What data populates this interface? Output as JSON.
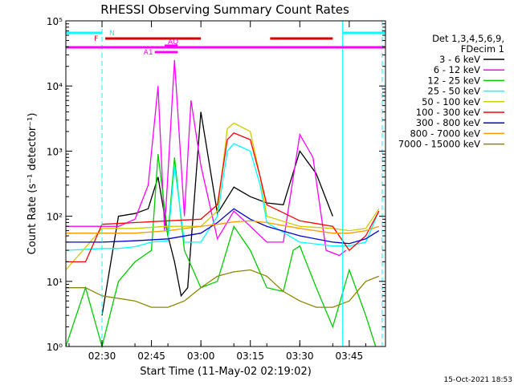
{
  "chart_data": {
    "type": "line",
    "title": "RHESSI Observing Summary Count Rates",
    "xlabel": "Start Time (11-May-02 02:19:02)",
    "ylabel": "Count Rate (s⁻¹ detector⁻¹)",
    "xlim": [
      "02:19:02",
      "03:56:00"
    ],
    "ylim": [
      1,
      100000
    ],
    "yscale": "log",
    "x_ticks": [
      "02:30",
      "02:45",
      "03:00",
      "03:15",
      "03:30",
      "03:45"
    ],
    "y_ticks": [
      {
        "value": 1,
        "label": "10⁰"
      },
      {
        "value": 10,
        "label": "10¹"
      },
      {
        "value": 100,
        "label": "10²"
      },
      {
        "value": 1000,
        "label": "10³"
      },
      {
        "value": 10000,
        "label": "10⁴"
      },
      {
        "value": 100000,
        "label": "10⁵"
      }
    ],
    "legend": {
      "placement": "right",
      "header": [
        "Det 1,3,4,5,6,9,",
        "FDecim 1"
      ]
    },
    "timestamp": "15-Oct-2021 18:53",
    "series": [
      {
        "name": "3 - 6 keV",
        "color": "#000000",
        "x": [
          "02:30",
          "02:35",
          "02:40",
          "02:44",
          "02:47",
          "02:50",
          "02:52",
          "02:54",
          "02:56",
          "03:00",
          "03:05",
          "03:10",
          "03:15",
          "03:20",
          "03:25",
          "03:30",
          "03:35",
          "03:40"
        ],
        "y": [
          3,
          100,
          110,
          130,
          400,
          50,
          20,
          6,
          8,
          4000,
          110,
          280,
          200,
          160,
          150,
          1000,
          450,
          100
        ]
      },
      {
        "name": "6 - 12 keV",
        "color": "#ff00ff",
        "x": [
          "02:19:02",
          "02:30",
          "02:35",
          "02:40",
          "02:44",
          "02:47",
          "02:49",
          "02:52",
          "02:55",
          "02:57",
          "03:00",
          "03:05",
          "03:10",
          "03:15",
          "03:20",
          "03:25",
          "03:30",
          "03:34",
          "03:38",
          "03:42",
          "03:44"
        ],
        "y": [
          70,
          70,
          70,
          90,
          300,
          10000,
          60,
          25000,
          100,
          6000,
          600,
          45,
          120,
          70,
          40,
          40,
          1800,
          800,
          30,
          25,
          30
        ]
      },
      {
        "name": "12 - 25 keV",
        "color": "#00cc00",
        "x": [
          "02:19:02",
          "02:25",
          "02:30",
          "02:35",
          "02:40",
          "02:45",
          "02:47",
          "02:50",
          "02:52",
          "02:55",
          "03:00",
          "03:05",
          "03:10",
          "03:15",
          "03:20",
          "03:25",
          "03:28",
          "03:30",
          "03:35",
          "03:40",
          "03:45",
          "03:50",
          "03:53"
        ],
        "y": [
          1,
          8,
          1,
          10,
          20,
          30,
          900,
          50,
          800,
          30,
          8,
          10,
          70,
          30,
          8,
          7,
          30,
          35,
          8,
          2,
          15,
          3,
          1
        ]
      },
      {
        "name": "25 - 50 keV",
        "color": "#00ffff",
        "x": [
          "02:19:02",
          "02:30",
          "02:35",
          "02:40",
          "02:45",
          "02:50",
          "02:52",
          "02:55",
          "03:00",
          "03:05",
          "03:08",
          "03:10",
          "03:15",
          "03:18",
          "03:20",
          "03:30",
          "03:40",
          "03:45",
          "03:50",
          "03:54"
        ],
        "y": [
          30,
          32,
          32,
          34,
          40,
          42,
          600,
          40,
          40,
          100,
          1000,
          1300,
          1000,
          300,
          80,
          40,
          35,
          35,
          40,
          120
        ]
      },
      {
        "name": "50 - 100 keV",
        "color": "#cccc00",
        "x": [
          "02:19:02",
          "02:30",
          "02:40",
          "02:50",
          "03:00",
          "03:05",
          "03:08",
          "03:10",
          "03:15",
          "03:18",
          "03:20",
          "03:30",
          "03:40",
          "03:45",
          "03:50",
          "03:54"
        ],
        "y": [
          15,
          65,
          65,
          70,
          70,
          120,
          2200,
          2700,
          2000,
          400,
          100,
          70,
          65,
          60,
          65,
          130
        ]
      },
      {
        "name": "100 - 300 keV",
        "color": "#ff0000",
        "x": [
          "02:19:02",
          "02:25",
          "02:30",
          "02:40",
          "02:50",
          "03:00",
          "03:05",
          "03:08",
          "03:10",
          "03:15",
          "03:18",
          "03:20",
          "03:30",
          "03:40",
          "03:45",
          "03:50",
          "03:54"
        ],
        "y": [
          20,
          20,
          75,
          80,
          85,
          90,
          150,
          1500,
          1900,
          1500,
          400,
          150,
          85,
          70,
          30,
          50,
          120
        ]
      },
      {
        "name": "300 - 800 keV",
        "color": "#0000cc",
        "x": [
          "02:19:02",
          "02:30",
          "02:40",
          "02:50",
          "03:00",
          "03:05",
          "03:10",
          "03:15",
          "03:20",
          "03:30",
          "03:40",
          "03:45",
          "03:50",
          "03:54"
        ],
        "y": [
          40,
          40,
          42,
          45,
          55,
          80,
          130,
          90,
          70,
          50,
          40,
          38,
          45,
          60
        ]
      },
      {
        "name": "800 - 7000 keV",
        "color": "#ff9900",
        "x": [
          "02:19:02",
          "02:30",
          "02:40",
          "02:50",
          "03:00",
          "03:05",
          "03:10",
          "03:15",
          "03:20",
          "03:30",
          "03:40",
          "03:45",
          "03:50",
          "03:54"
        ],
        "y": [
          55,
          55,
          55,
          60,
          70,
          75,
          82,
          85,
          80,
          65,
          55,
          55,
          60,
          70
        ]
      },
      {
        "name": "7000 - 15000 keV",
        "color": "#888800",
        "x": [
          "02:19:02",
          "02:25",
          "02:30",
          "02:40",
          "02:45",
          "02:50",
          "02:55",
          "03:00",
          "03:05",
          "03:10",
          "03:15",
          "03:20",
          "03:25",
          "03:30",
          "03:35",
          "03:40",
          "03:45",
          "03:50",
          "03:54"
        ],
        "y": [
          8,
          8,
          6,
          5,
          4,
          4,
          5,
          8,
          12,
          14,
          15,
          12,
          7,
          5,
          4,
          4,
          5,
          10,
          12
        ]
      }
    ],
    "state_bars": [
      {
        "label": "N",
        "color": "#00ffff",
        "segments": [
          [
            "02:19:02",
            "02:30"
          ],
          [
            "03:43",
            "03:56:00"
          ]
        ]
      },
      {
        "label": "F",
        "color": "#dd0000",
        "segments": [
          [
            "02:31",
            "03:00"
          ],
          [
            "03:21",
            "03:40"
          ]
        ]
      },
      {
        "label": "",
        "color": "#ff00ff",
        "segments": [
          [
            "02:19:02",
            "03:56:00"
          ]
        ]
      },
      {
        "label": "AQ",
        "color": "#ff00ff",
        "segments": [
          [
            "02:49",
            "02:53"
          ]
        ]
      },
      {
        "label": "A1",
        "color": "#ff00ff",
        "segments": [
          [
            "02:46",
            "02:53"
          ]
        ]
      }
    ],
    "vertical_lines": [
      {
        "x": "02:30",
        "color": "#00ffff",
        "style": "dashed"
      },
      {
        "x": "03:43",
        "color": "#00ffff",
        "style": "solid"
      },
      {
        "x": "03:55",
        "color": "#00ffff",
        "style": "dashed"
      }
    ]
  }
}
